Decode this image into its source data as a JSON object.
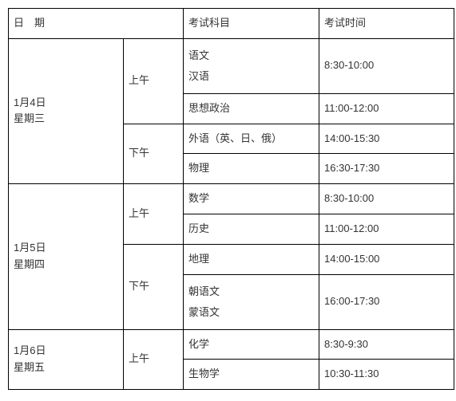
{
  "headers": {
    "date": "日　期",
    "subject": "考试科目",
    "time": "考试时间"
  },
  "days": [
    {
      "date_line1": "1月4日",
      "date_line2": "星期三",
      "sessions": [
        {
          "label": "上午",
          "rows": [
            {
              "subject_line1": "语文",
              "subject_line2": "汉语",
              "time": "8:30-10:00"
            },
            {
              "subject_line1": "思想政治",
              "subject_line2": "",
              "time": "11:00-12:00"
            }
          ]
        },
        {
          "label": "下午",
          "rows": [
            {
              "subject_line1": "外语（英、日、俄）",
              "subject_line2": "",
              "time": "14:00-15:30"
            },
            {
              "subject_line1": "物理",
              "subject_line2": "",
              "time": "16:30-17:30"
            }
          ]
        }
      ]
    },
    {
      "date_line1": "1月5日",
      "date_line2": "星期四",
      "sessions": [
        {
          "label": "上午",
          "rows": [
            {
              "subject_line1": "数学",
              "subject_line2": "",
              "time": "8:30-10:00"
            },
            {
              "subject_line1": "历史",
              "subject_line2": "",
              "time": "11:00-12:00"
            }
          ]
        },
        {
          "label": "下午",
          "rows": [
            {
              "subject_line1": "地理",
              "subject_line2": "",
              "time": "14:00-15:00"
            },
            {
              "subject_line1": "朝语文",
              "subject_line2": "蒙语文",
              "time": "16:00-17:30"
            }
          ]
        }
      ]
    },
    {
      "date_line1": "1月6日",
      "date_line2": "星期五",
      "sessions": [
        {
          "label": "上午",
          "rows": [
            {
              "subject_line1": "化学",
              "subject_line2": "",
              "time": "8:30-9:30"
            },
            {
              "subject_line1": "生物学",
              "subject_line2": "",
              "time": "10:30-11:30"
            }
          ]
        }
      ]
    }
  ]
}
